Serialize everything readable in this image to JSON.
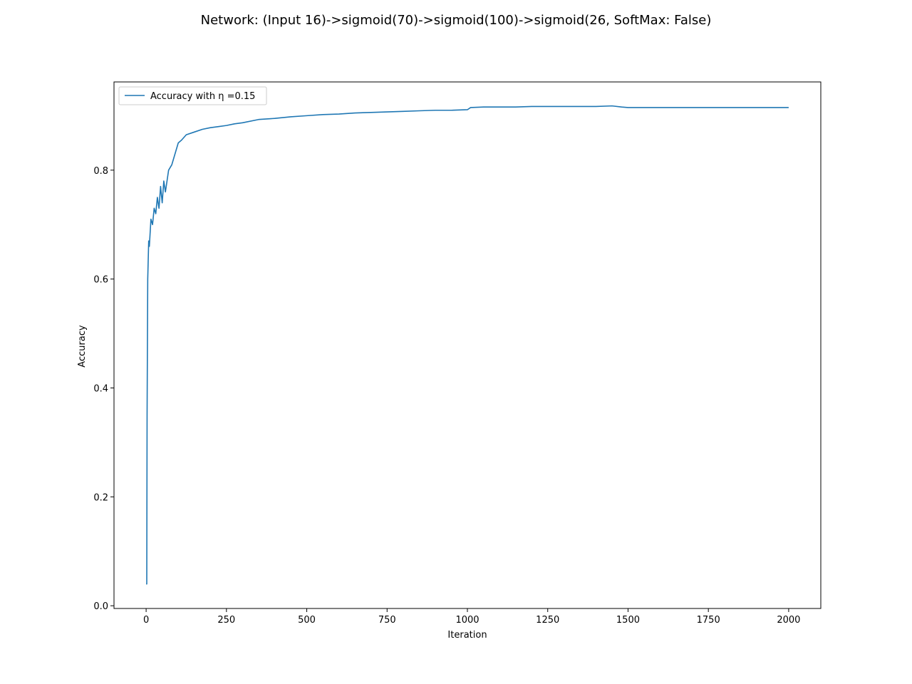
{
  "chart_data": {
    "type": "line",
    "title": "Network: (Input 16)->sigmoid(70)->sigmoid(100)->sigmoid(26, SoftMax: False)",
    "xlabel": "Iteration",
    "ylabel": "Accuracy",
    "xlim": [
      -100,
      2100
    ],
    "ylim": [
      -0.005,
      0.962
    ],
    "xticks": [
      0,
      250,
      500,
      750,
      1000,
      1250,
      1500,
      1750,
      2000
    ],
    "xtick_labels": [
      "0",
      "250",
      "500",
      "750",
      "1000",
      "1250",
      "1500",
      "1750",
      "2000"
    ],
    "yticks": [
      0.0,
      0.2,
      0.4,
      0.6,
      0.8
    ],
    "ytick_labels": [
      "0.0",
      "0.2",
      "0.4",
      "0.6",
      "0.8"
    ],
    "grid": false,
    "legend_position": "top-left",
    "color": "#1f77b4",
    "series": [
      {
        "name": "Accuracy with η =0.15",
        "x": [
          0,
          2,
          3,
          5,
          8,
          10,
          15,
          20,
          25,
          30,
          35,
          40,
          45,
          50,
          55,
          60,
          70,
          80,
          90,
          100,
          110,
          125,
          150,
          175,
          200,
          225,
          250,
          275,
          300,
          350,
          400,
          450,
          500,
          550,
          600,
          650,
          700,
          750,
          800,
          850,
          900,
          950,
          1000,
          1010,
          1050,
          1100,
          1150,
          1200,
          1250,
          1300,
          1350,
          1400,
          1450,
          1480,
          1500,
          1550,
          1600,
          1700,
          1800,
          1900,
          2000
        ],
        "y": [
          0.04,
          0.04,
          0.35,
          0.6,
          0.67,
          0.66,
          0.71,
          0.7,
          0.73,
          0.72,
          0.75,
          0.73,
          0.77,
          0.74,
          0.78,
          0.76,
          0.8,
          0.81,
          0.83,
          0.85,
          0.855,
          0.865,
          0.87,
          0.875,
          0.878,
          0.88,
          0.882,
          0.885,
          0.887,
          0.893,
          0.895,
          0.898,
          0.9,
          0.902,
          0.903,
          0.905,
          0.906,
          0.907,
          0.908,
          0.909,
          0.91,
          0.91,
          0.911,
          0.915,
          0.916,
          0.916,
          0.916,
          0.917,
          0.917,
          0.917,
          0.917,
          0.917,
          0.918,
          0.916,
          0.915,
          0.915,
          0.915,
          0.915,
          0.915,
          0.915,
          0.915
        ]
      }
    ]
  }
}
